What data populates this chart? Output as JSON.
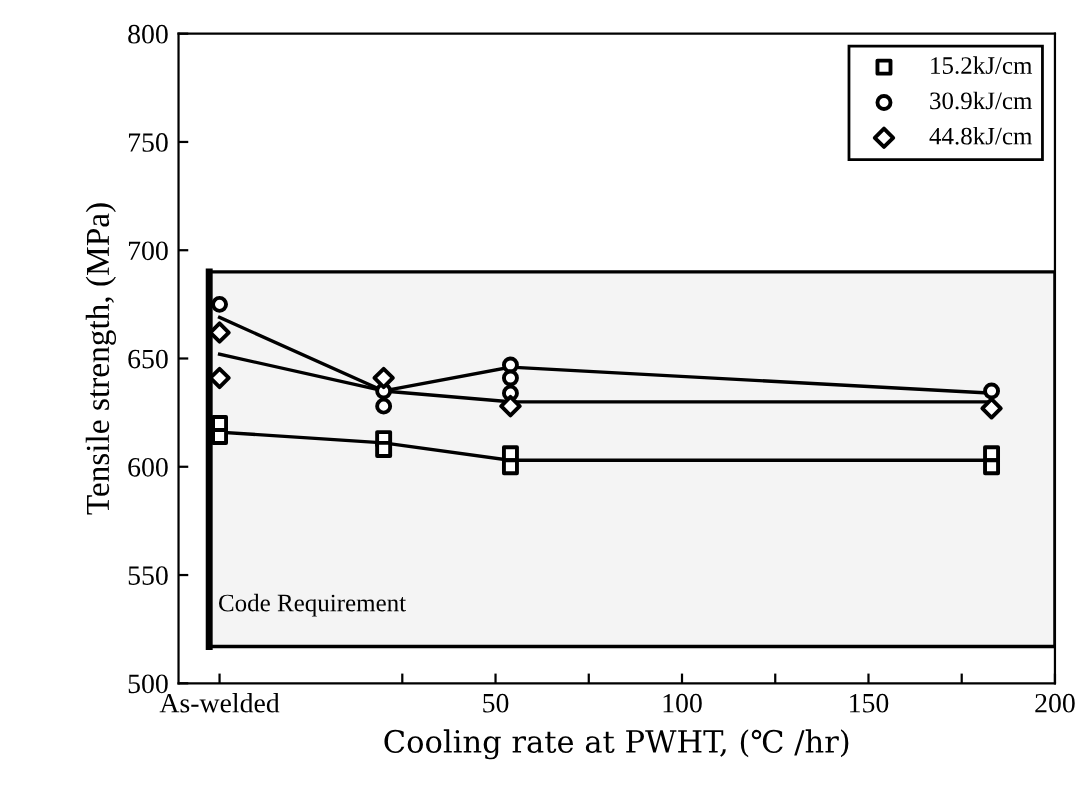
{
  "chart_data": {
    "type": "scatter",
    "xlabel": "Cooling rate at PWHT, (℃ /hr)",
    "ylabel": "Tensile strength, (MPa)",
    "xlim": [
      -35,
      200
    ],
    "ylim": [
      500,
      800
    ],
    "xticks": [
      {
        "value": -24,
        "label": "As-welded"
      },
      {
        "value": 25,
        "label": null
      },
      50,
      {
        "value": 75,
        "label": null
      },
      100,
      {
        "value": 125,
        "label": null
      },
      150,
      {
        "value": 175,
        "label": null
      },
      200
    ],
    "yticks": [
      500,
      550,
      600,
      650,
      700,
      750,
      800
    ],
    "series": [
      {
        "name": "15.2kJ/cm",
        "marker": "square",
        "color": "#000000",
        "x": [
          -24,
          -24,
          20,
          20,
          54,
          54,
          183,
          183
        ],
        "values": [
          620,
          614,
          613,
          608,
          606,
          600,
          606,
          600
        ]
      },
      {
        "name": "30.9kJ/cm",
        "marker": "circle",
        "color": "#000000",
        "x": [
          -24,
          20,
          20,
          54,
          54,
          54,
          183
        ],
        "values": [
          675,
          635,
          628,
          647,
          641,
          634,
          635
        ]
      },
      {
        "name": "44.8kJ/cm",
        "marker": "diamond",
        "color": "#000000",
        "x": [
          -24,
          -24,
          20,
          54,
          183
        ],
        "values": [
          662,
          641,
          641,
          628,
          627
        ]
      },
      {
        "type": "line",
        "marker": "none",
        "color": "#000000",
        "x": [
          -24,
          20,
          54,
          183
        ],
        "values": [
          616,
          611,
          603,
          603
        ]
      },
      {
        "type": "line",
        "marker": "none",
        "color": "#000000",
        "x": [
          -24,
          20,
          54,
          183
        ],
        "values": [
          669,
          635,
          646,
          634
        ]
      },
      {
        "type": "line",
        "marker": "none",
        "color": "#000000",
        "x": [
          -24,
          20,
          54,
          183
        ],
        "values": [
          652,
          635,
          630,
          630
        ]
      }
    ],
    "bands": [
      {
        "axis": "y",
        "from": 517,
        "to": 690,
        "label": "Code Requirement",
        "color": "#000000"
      }
    ],
    "legend": "top right",
    "grid": false
  }
}
